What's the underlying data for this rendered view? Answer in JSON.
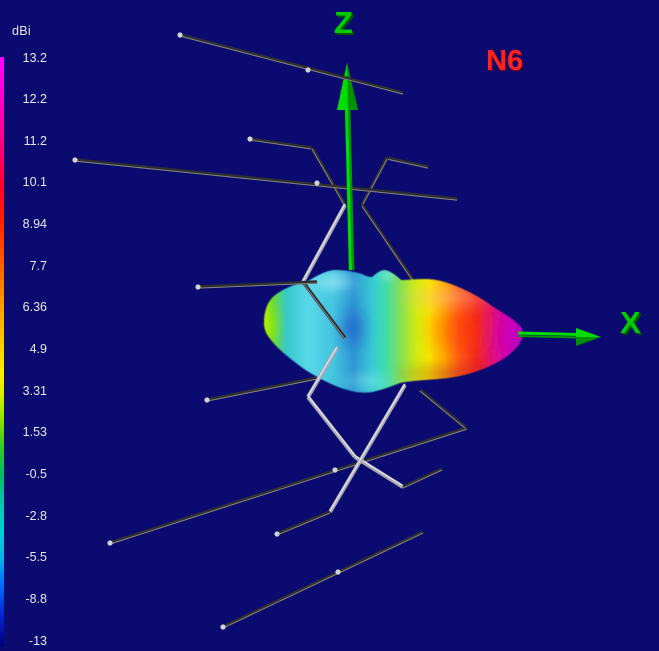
{
  "view": {
    "annotation": "N6"
  },
  "axes": {
    "z": "Z",
    "x": "X"
  },
  "scale": {
    "unit": "dBi",
    "ticks": [
      "13.2",
      "12.2",
      "11.2",
      "10.1",
      "8.94",
      "7.7",
      "6.36",
      "4.9",
      "3.31",
      "1.53",
      "-0.5",
      "-2.8",
      "-5.5",
      "-8.8",
      "-13"
    ]
  },
  "colors": {
    "background": "#0a0a70",
    "axis_green": "#00cc00",
    "annotation_red": "#ff2222",
    "scale_text": "#e8e8e8"
  },
  "chart_data": {
    "type": "3d-radiation-pattern",
    "title": "N6",
    "colorbar": {
      "unit": "dBi",
      "ticks": [
        13.2,
        12.2,
        11.2,
        10.1,
        8.94,
        7.7,
        6.36,
        4.9,
        3.31,
        1.53,
        -0.5,
        -2.8,
        -5.5,
        -8.8,
        -13
      ],
      "gradient_top_to_bottom": [
        "#ff00ff",
        "#ff0088",
        "#ff2200",
        "#ff8000",
        "#ffd500",
        "#ffee00",
        "#88dd00",
        "#00bb66",
        "#00d2d2",
        "#0066ff",
        "#000078"
      ]
    },
    "gain_max_dbi": 13.2,
    "gain_min_dbi": -13,
    "main_lobe_direction": "+X",
    "back_lobe_level": "low (cyan/green, ~0 dBi)",
    "axes_shown": [
      "Z",
      "X"
    ],
    "legend_position": "left",
    "antenna_wire_elements": 6
  }
}
